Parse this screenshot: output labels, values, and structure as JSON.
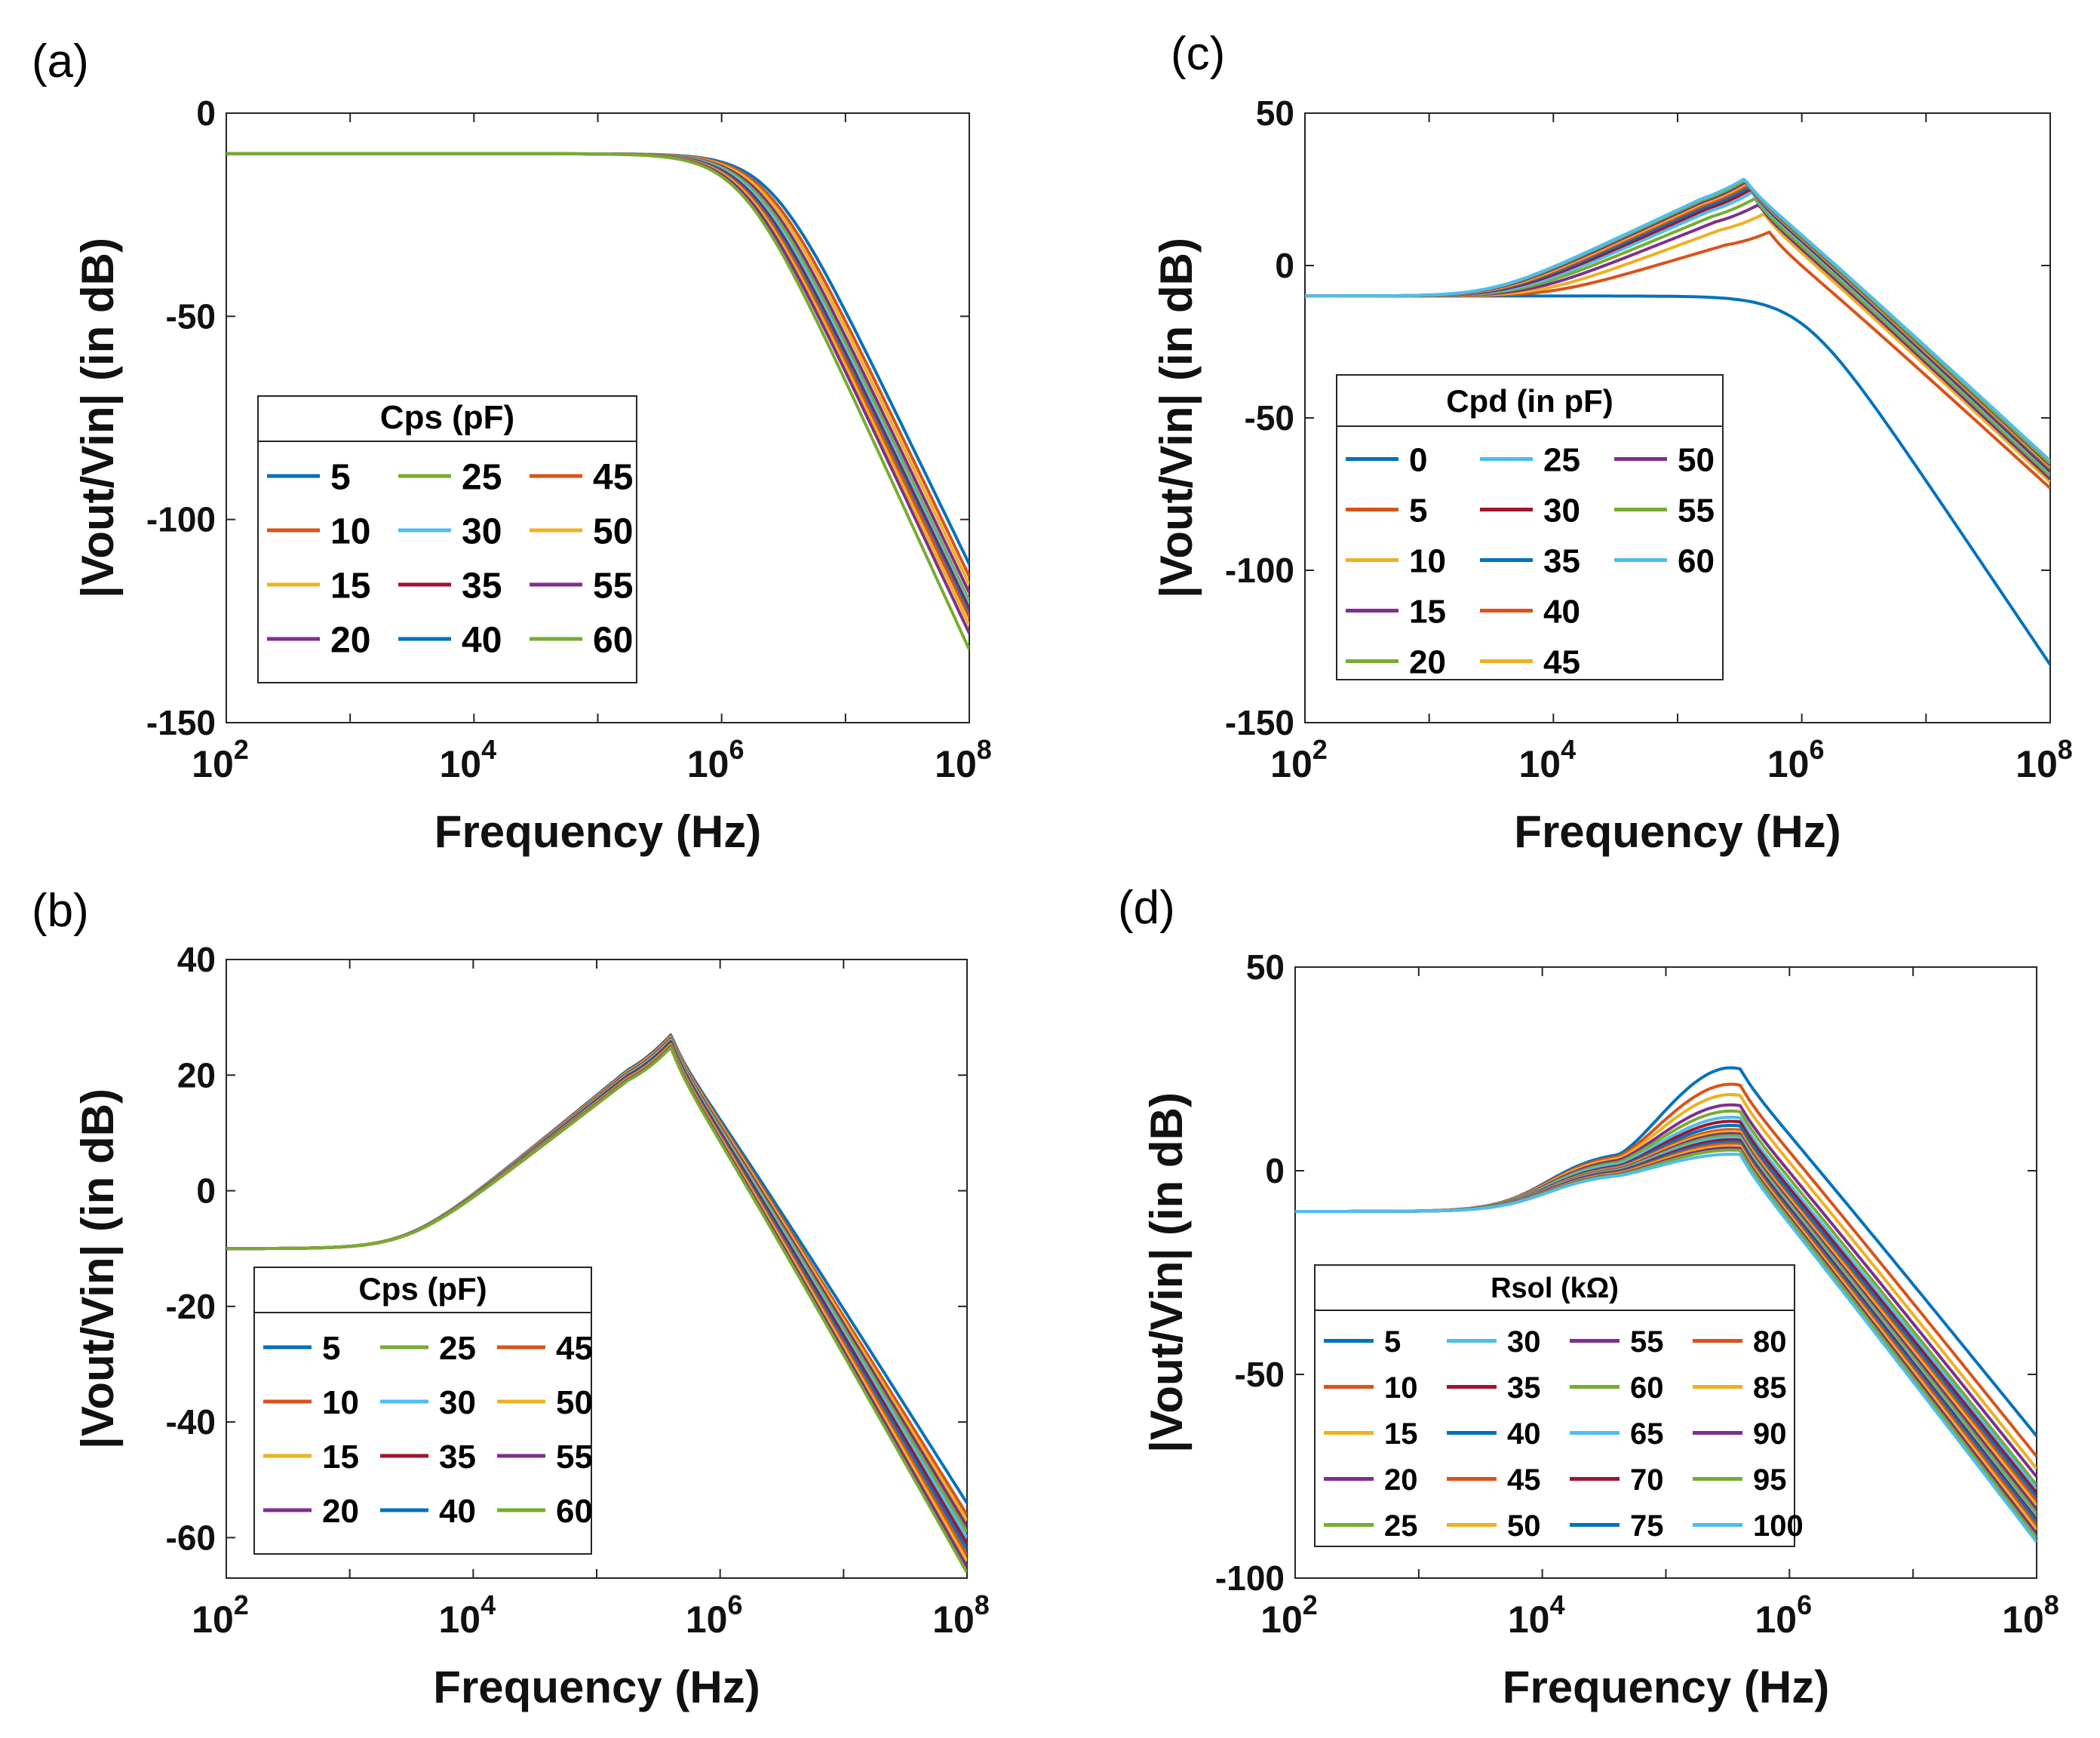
{
  "figure": {
    "panels": [
      "(a)",
      "(b)",
      "(c)",
      "(d)"
    ]
  },
  "chart_data": [
    {
      "id": "a",
      "type": "line",
      "panel_label": "(a)",
      "xlabel": "Frequency (Hz)",
      "ylabel": "|Vout/Vin| (in dB)",
      "xscale": "log",
      "xlim": [
        100,
        100000000
      ],
      "x_ticks": [
        {
          "base": "10",
          "exp": "2"
        },
        {
          "base": "10",
          "exp": "4"
        },
        {
          "base": "10",
          "exp": "6"
        },
        {
          "base": "10",
          "exp": "8"
        }
      ],
      "ylim": [
        -150,
        0
      ],
      "y_ticks": [
        "0",
        "-50",
        "-100",
        "-150"
      ],
      "legend_title": "Cps (pF)",
      "legend_position": "lower-left",
      "legend_columns": 3,
      "curve_model": "lowpass",
      "series": [
        {
          "name": "5",
          "color": "#0072BD",
          "flat_db": -10,
          "fc_hz": 2500000,
          "end_db": -111
        },
        {
          "name": "10",
          "color": "#D95319",
          "flat_db": -10,
          "fc_hz": 2300000,
          "end_db": -114
        },
        {
          "name": "15",
          "color": "#EDB120",
          "flat_db": -10,
          "fc_hz": 2150000,
          "end_db": -116
        },
        {
          "name": "20",
          "color": "#7E2F8E",
          "flat_db": -10,
          "fc_hz": 2000000,
          "end_db": -118
        },
        {
          "name": "25",
          "color": "#77AC30",
          "flat_db": -10,
          "fc_hz": 1900000,
          "end_db": -120
        },
        {
          "name": "30",
          "color": "#4DBEEE",
          "flat_db": -10,
          "fc_hz": 1800000,
          "end_db": -121
        },
        {
          "name": "35",
          "color": "#A2142F",
          "flat_db": -10,
          "fc_hz": 1700000,
          "end_db": -122
        },
        {
          "name": "40",
          "color": "#0072BD",
          "flat_db": -10,
          "fc_hz": 1650000,
          "end_db": -123
        },
        {
          "name": "45",
          "color": "#D95319",
          "flat_db": -10,
          "fc_hz": 1600000,
          "end_db": -124
        },
        {
          "name": "50",
          "color": "#EDB120",
          "flat_db": -10,
          "fc_hz": 1550000,
          "end_db": -126
        },
        {
          "name": "55",
          "color": "#7E2F8E",
          "flat_db": -10,
          "fc_hz": 1500000,
          "end_db": -128
        },
        {
          "name": "60",
          "color": "#77AC30",
          "flat_db": -10,
          "fc_hz": 1450000,
          "end_db": -132
        }
      ]
    },
    {
      "id": "b",
      "type": "line",
      "panel_label": "(b)",
      "xlabel": "Frequency (Hz)",
      "ylabel": "|Vout/Vin| (in dB)",
      "xscale": "log",
      "xlim": [
        100,
        100000000
      ],
      "x_ticks": [
        {
          "base": "10",
          "exp": "2"
        },
        {
          "base": "10",
          "exp": "4"
        },
        {
          "base": "10",
          "exp": "6"
        },
        {
          "base": "10",
          "exp": "8"
        }
      ],
      "ylim": [
        -67,
        40
      ],
      "y_ticks": [
        "40",
        "20",
        "0",
        "-20",
        "-40",
        "-60"
      ],
      "legend_title": "Cps (pF)",
      "legend_position": "lower-left",
      "legend_columns": 3,
      "curve_model": "resonant",
      "series": [
        {
          "name": "5",
          "color": "#0072BD",
          "flat_db": -10,
          "rise_start_hz": 3000,
          "peak_hz": 400000,
          "peak_db": 27,
          "end_db": -54
        },
        {
          "name": "10",
          "color": "#D95319",
          "flat_db": -10,
          "rise_start_hz": 3000,
          "peak_hz": 400000,
          "peak_db": 26.8,
          "end_db": -56
        },
        {
          "name": "15",
          "color": "#EDB120",
          "flat_db": -10,
          "rise_start_hz": 3000,
          "peak_hz": 400000,
          "peak_db": 26.6,
          "end_db": -57
        },
        {
          "name": "20",
          "color": "#7E2F8E",
          "flat_db": -10,
          "rise_start_hz": 3000,
          "peak_hz": 400000,
          "peak_db": 26.4,
          "end_db": -58
        },
        {
          "name": "25",
          "color": "#77AC30",
          "flat_db": -10,
          "rise_start_hz": 3000,
          "peak_hz": 400000,
          "peak_db": 26.2,
          "end_db": -59
        },
        {
          "name": "30",
          "color": "#4DBEEE",
          "flat_db": -10,
          "rise_start_hz": 3000,
          "peak_hz": 400000,
          "peak_db": 26.0,
          "end_db": -60
        },
        {
          "name": "35",
          "color": "#A2142F",
          "flat_db": -10,
          "rise_start_hz": 3000,
          "peak_hz": 400000,
          "peak_db": 25.8,
          "end_db": -61
        },
        {
          "name": "40",
          "color": "#0072BD",
          "flat_db": -10,
          "rise_start_hz": 3000,
          "peak_hz": 400000,
          "peak_db": 25.6,
          "end_db": -62
        },
        {
          "name": "45",
          "color": "#D95319",
          "flat_db": -10,
          "rise_start_hz": 3000,
          "peak_hz": 400000,
          "peak_db": 25.4,
          "end_db": -63
        },
        {
          "name": "50",
          "color": "#EDB120",
          "flat_db": -10,
          "rise_start_hz": 3000,
          "peak_hz": 400000,
          "peak_db": 25.2,
          "end_db": -64
        },
        {
          "name": "55",
          "color": "#7E2F8E",
          "flat_db": -10,
          "rise_start_hz": 3000,
          "peak_hz": 400000,
          "peak_db": 25.0,
          "end_db": -65
        },
        {
          "name": "60",
          "color": "#77AC30",
          "flat_db": -10,
          "rise_start_hz": 3000,
          "peak_hz": 400000,
          "peak_db": 24.8,
          "end_db": -66
        }
      ]
    },
    {
      "id": "c",
      "type": "line",
      "panel_label": "(c)",
      "xlabel": "Frequency (Hz)",
      "ylabel": "|Vout/Vin| (in dB)",
      "xscale": "log",
      "xlim": [
        100,
        100000000
      ],
      "x_ticks": [
        {
          "base": "10",
          "exp": "2"
        },
        {
          "base": "10",
          "exp": "4"
        },
        {
          "base": "10",
          "exp": "6"
        },
        {
          "base": "10",
          "exp": "8"
        }
      ],
      "ylim": [
        -150,
        50
      ],
      "y_ticks": [
        "50",
        "0",
        "-50",
        "-100",
        "-150"
      ],
      "legend_title": "Cpd (in pF)",
      "legend_position": "lower-left",
      "legend_columns": 3,
      "curve_model": "mixed",
      "series": [
        {
          "name": "0",
          "color": "#0072BD",
          "model": "lowpass",
          "flat_db": -10,
          "fc_hz": 1000000,
          "end_db": -131
        },
        {
          "name": "5",
          "color": "#D95319",
          "model": "resonant",
          "flat_db": -10,
          "rise_start_hz": 10000,
          "peak_hz": 550000,
          "peak_db": 11,
          "end_db": -73
        },
        {
          "name": "10",
          "color": "#EDB120",
          "model": "resonant",
          "flat_db": -10,
          "rise_start_hz": 8000,
          "peak_hz": 500000,
          "peak_db": 17,
          "end_db": -71
        },
        {
          "name": "15",
          "color": "#7E2F8E",
          "model": "resonant",
          "flat_db": -10,
          "rise_start_hz": 6500,
          "peak_hz": 450000,
          "peak_db": 20,
          "end_db": -70
        },
        {
          "name": "20",
          "color": "#77AC30",
          "model": "resonant",
          "flat_db": -10,
          "rise_start_hz": 5500,
          "peak_hz": 420000,
          "peak_db": 22,
          "end_db": -69
        },
        {
          "name": "25",
          "color": "#4DBEEE",
          "model": "resonant",
          "flat_db": -10,
          "rise_start_hz": 5000,
          "peak_hz": 400000,
          "peak_db": 24,
          "end_db": -68
        },
        {
          "name": "30",
          "color": "#A2142F",
          "model": "resonant",
          "flat_db": -10,
          "rise_start_hz": 4500,
          "peak_hz": 390000,
          "peak_db": 25,
          "end_db": -67.5
        },
        {
          "name": "35",
          "color": "#0072BD",
          "model": "resonant",
          "flat_db": -10,
          "rise_start_hz": 4200,
          "peak_hz": 380000,
          "peak_db": 25.8,
          "end_db": -67
        },
        {
          "name": "40",
          "color": "#D95319",
          "model": "resonant",
          "flat_db": -10,
          "rise_start_hz": 4000,
          "peak_hz": 370000,
          "peak_db": 26.5,
          "end_db": -66.5
        },
        {
          "name": "45",
          "color": "#EDB120",
          "model": "resonant",
          "flat_db": -10,
          "rise_start_hz": 3800,
          "peak_hz": 360000,
          "peak_db": 27,
          "end_db": -66
        },
        {
          "name": "50",
          "color": "#7E2F8E",
          "model": "resonant",
          "flat_db": -10,
          "rise_start_hz": 3600,
          "peak_hz": 355000,
          "peak_db": 27.5,
          "end_db": -65.5
        },
        {
          "name": "55",
          "color": "#77AC30",
          "model": "resonant",
          "flat_db": -10,
          "rise_start_hz": 3400,
          "peak_hz": 350000,
          "peak_db": 28,
          "end_db": -65
        },
        {
          "name": "60",
          "color": "#4DBEEE",
          "model": "resonant",
          "flat_db": -10,
          "rise_start_hz": 3300,
          "peak_hz": 345000,
          "peak_db": 28.5,
          "end_db": -64
        }
      ]
    },
    {
      "id": "d",
      "type": "line",
      "panel_label": "(d)",
      "xlabel": "Frequency (Hz)",
      "ylabel": "|Vout/Vin| (in dB)",
      "xscale": "log",
      "xlim": [
        100,
        100000000
      ],
      "x_ticks": [
        {
          "base": "10",
          "exp": "2"
        },
        {
          "base": "10",
          "exp": "4"
        },
        {
          "base": "10",
          "exp": "6"
        },
        {
          "base": "10",
          "exp": "8"
        }
      ],
      "ylim": [
        -100,
        50
      ],
      "y_ticks": [
        "50",
        "0",
        "-50",
        "-100"
      ],
      "legend_title": "Rsol (kΩ)",
      "legend_position": "lower-left",
      "legend_columns": 4,
      "curve_model": "shelf",
      "series": [
        {
          "name": "5",
          "color": "#0072BD",
          "flat_db": -10,
          "shelf_db": 5.0,
          "peak_hz": 400000,
          "peak_db": 25,
          "end_db": -65
        },
        {
          "name": "10",
          "color": "#D95319",
          "flat_db": -10,
          "shelf_db": 4.5,
          "peak_hz": 400000,
          "peak_db": 21,
          "end_db": -70
        },
        {
          "name": "15",
          "color": "#EDB120",
          "flat_db": -10,
          "shelf_db": 4.0,
          "peak_hz": 400000,
          "peak_db": 18.5,
          "end_db": -73
        },
        {
          "name": "20",
          "color": "#7E2F8E",
          "flat_db": -10,
          "shelf_db": 3.5,
          "peak_hz": 400000,
          "peak_db": 16,
          "end_db": -75
        },
        {
          "name": "25",
          "color": "#77AC30",
          "flat_db": -10,
          "shelf_db": 3.0,
          "peak_hz": 400000,
          "peak_db": 14.5,
          "end_db": -77
        },
        {
          "name": "30",
          "color": "#4DBEEE",
          "flat_db": -10,
          "shelf_db": 2.5,
          "peak_hz": 400000,
          "peak_db": 13,
          "end_db": -78
        },
        {
          "name": "35",
          "color": "#A2142F",
          "flat_db": -10,
          "shelf_db": 2.0,
          "peak_hz": 400000,
          "peak_db": 12,
          "end_db": -79
        },
        {
          "name": "40",
          "color": "#0072BD",
          "flat_db": -10,
          "shelf_db": 1.8,
          "peak_hz": 400000,
          "peak_db": 11,
          "end_db": -80
        },
        {
          "name": "45",
          "color": "#D95319",
          "flat_db": -10,
          "shelf_db": 1.6,
          "peak_hz": 400000,
          "peak_db": 10,
          "end_db": -81
        },
        {
          "name": "50",
          "color": "#EDB120",
          "flat_db": -10,
          "shelf_db": 1.4,
          "peak_hz": 400000,
          "peak_db": 9.5,
          "end_db": -82
        },
        {
          "name": "55",
          "color": "#7E2F8E",
          "flat_db": -10,
          "shelf_db": 1.2,
          "peak_hz": 400000,
          "peak_db": 9,
          "end_db": -83
        },
        {
          "name": "60",
          "color": "#77AC30",
          "flat_db": -10,
          "shelf_db": 1.0,
          "peak_hz": 400000,
          "peak_db": 8.5,
          "end_db": -84
        },
        {
          "name": "65",
          "color": "#4DBEEE",
          "flat_db": -10,
          "shelf_db": 0.8,
          "peak_hz": 400000,
          "peak_db": 8,
          "end_db": -85
        },
        {
          "name": "70",
          "color": "#A2142F",
          "flat_db": -10,
          "shelf_db": 0.6,
          "peak_hz": 400000,
          "peak_db": 7.5,
          "end_db": -85.5
        },
        {
          "name": "75",
          "color": "#0072BD",
          "flat_db": -10,
          "shelf_db": 0.4,
          "peak_hz": 400000,
          "peak_db": 7,
          "end_db": -86
        },
        {
          "name": "80",
          "color": "#D95319",
          "flat_db": -10,
          "shelf_db": 0.2,
          "peak_hz": 400000,
          "peak_db": 6.5,
          "end_db": -87
        },
        {
          "name": "85",
          "color": "#EDB120",
          "flat_db": -10,
          "shelf_db": 0.0,
          "peak_hz": 400000,
          "peak_db": 6,
          "end_db": -88
        },
        {
          "name": "90",
          "color": "#7E2F8E",
          "flat_db": -10,
          "shelf_db": -0.2,
          "peak_hz": 400000,
          "peak_db": 5.5,
          "end_db": -89
        },
        {
          "name": "95",
          "color": "#77AC30",
          "flat_db": -10,
          "shelf_db": -0.4,
          "peak_hz": 400000,
          "peak_db": 5,
          "end_db": -90
        },
        {
          "name": "100",
          "color": "#4DBEEE",
          "flat_db": -10,
          "shelf_db": -0.6,
          "peak_hz": 400000,
          "peak_db": 4,
          "end_db": -91
        }
      ]
    }
  ]
}
